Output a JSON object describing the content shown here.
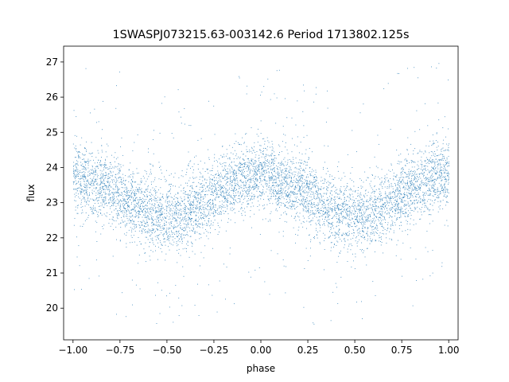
{
  "chart_data": {
    "type": "scatter",
    "title": "1SWASPJ073215.63-003142.6 Period 1713802.125s",
    "xlabel": "phase",
    "ylabel": "flux",
    "xlim": [
      -1.05,
      1.05
    ],
    "ylim": [
      19.1,
      27.45
    ],
    "xticks": [
      -1.0,
      -0.75,
      -0.5,
      -0.25,
      0.0,
      0.25,
      0.5,
      0.75,
      1.0
    ],
    "xtick_labels": [
      "−1.00",
      "−0.75",
      "−0.50",
      "−0.25",
      "0.00",
      "0.25",
      "0.50",
      "0.75",
      "1.00"
    ],
    "yticks": [
      20,
      21,
      22,
      23,
      24,
      25,
      26,
      27
    ],
    "ytick_labels": [
      "20",
      "21",
      "22",
      "23",
      "24",
      "25",
      "26",
      "27"
    ],
    "grid": false,
    "legend": false,
    "point_color": "#1f77b4",
    "series": [
      {
        "x": [
          -1.0,
          -0.9,
          -0.8,
          -0.7,
          -0.6,
          -0.5,
          -0.4,
          -0.3,
          -0.2,
          -0.1,
          0.0,
          0.1,
          0.2,
          0.3,
          0.4,
          0.5,
          0.6,
          0.7,
          0.8,
          0.9,
          1.0
        ],
        "y": [
          23.8,
          23.6,
          23.4,
          23.0,
          22.7,
          22.6,
          22.7,
          23.0,
          23.4,
          23.7,
          23.9,
          23.6,
          23.4,
          23.0,
          22.7,
          22.6,
          22.7,
          23.0,
          23.4,
          23.7,
          23.9
        ],
        "scatter_sd": 0.5
      }
    ]
  }
}
